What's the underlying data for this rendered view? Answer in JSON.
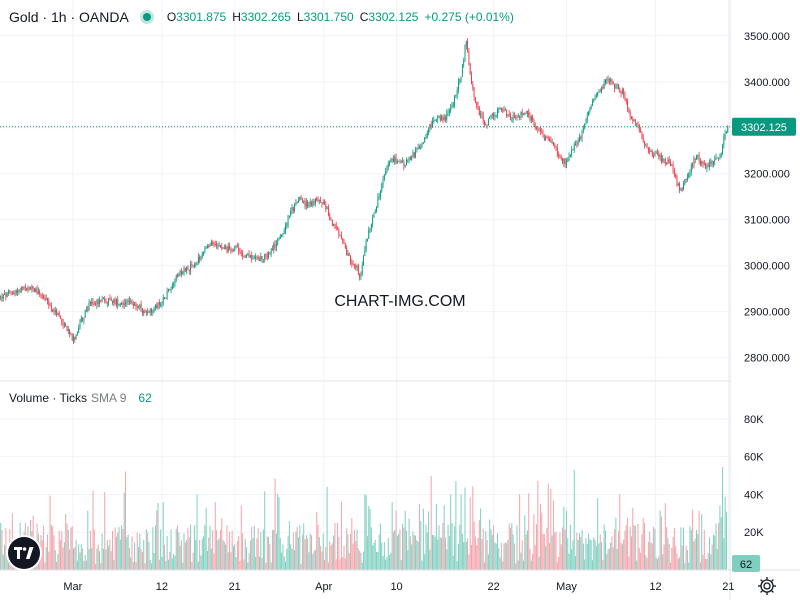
{
  "header": {
    "title": "Gold · 1h · OANDA",
    "open_label": "O",
    "open": "3301.875",
    "high_label": "H",
    "high": "3302.265",
    "low_label": "L",
    "low": "3301.750",
    "close_label": "C",
    "close": "3302.125",
    "change": "+0.275 (+0.01%)"
  },
  "watermark": "CHART-IMG.COM",
  "last_price_label": "3302.125",
  "volume_legend": {
    "name": "Volume · Ticks",
    "sma": "SMA 9",
    "value": "62"
  },
  "volume_last_label": "62",
  "colors": {
    "up": "#089981",
    "down": "#f23645",
    "up_volume": "#7fcfc0",
    "down_volume": "#f3a3aa",
    "text": "#131722",
    "grid": "#f0f3fa"
  },
  "icons": {
    "logo": "tradingview-logo-icon",
    "settings": "gear-icon"
  },
  "chart_data": {
    "type": "candlestick",
    "symbol": "Gold",
    "timeframe": "1h",
    "source": "OANDA",
    "ylim": [
      2760,
      3530
    ],
    "y_ticks": [
      2800,
      2900,
      3000,
      3100,
      3200,
      3300,
      3400,
      3500
    ],
    "y_tick_labels": [
      "2800.000",
      "2900.000",
      "3000.000",
      "3100.000",
      "3200.000",
      "3300.000",
      "3400.000",
      "3500.000"
    ],
    "x_ticks": [
      {
        "label": "Mar",
        "day": 0
      },
      {
        "label": "12",
        "day": 11
      },
      {
        "label": "21",
        "day": 20
      },
      {
        "label": "Apr",
        "day": 31
      },
      {
        "label": "10",
        "day": 40
      },
      {
        "label": "22",
        "day": 52
      },
      {
        "label": "May",
        "day": 61
      },
      {
        "label": "12",
        "day": 72
      },
      {
        "label": "21",
        "day": 81
      }
    ],
    "x_range_days": [
      -9,
      81.2
    ],
    "price_path": [
      [
        -9,
        2930
      ],
      [
        -7,
        2945
      ],
      [
        -5,
        2952
      ],
      [
        -4,
        2940
      ],
      [
        -3,
        2915
      ],
      [
        -2,
        2895
      ],
      [
        -1,
        2870
      ],
      [
        0,
        2835
      ],
      [
        1,
        2880
      ],
      [
        2,
        2915
      ],
      [
        3,
        2920
      ],
      [
        4,
        2925
      ],
      [
        6,
        2920
      ],
      [
        8,
        2915
      ],
      [
        9,
        2895
      ],
      [
        10,
        2905
      ],
      [
        11,
        2925
      ],
      [
        12,
        2950
      ],
      [
        13,
        2985
      ],
      [
        15,
        3000
      ],
      [
        16,
        3025
      ],
      [
        17,
        3045
      ],
      [
        18,
        3050
      ],
      [
        19,
        3035
      ],
      [
        20,
        3040
      ],
      [
        21,
        3025
      ],
      [
        22,
        3020
      ],
      [
        23,
        3015
      ],
      [
        24,
        3025
      ],
      [
        25,
        3045
      ],
      [
        26,
        3075
      ],
      [
        27,
        3120
      ],
      [
        28,
        3145
      ],
      [
        29,
        3130
      ],
      [
        30,
        3140
      ],
      [
        31,
        3140
      ],
      [
        32,
        3095
      ],
      [
        33,
        3065
      ],
      [
        34,
        3020
      ],
      [
        35,
        3000
      ],
      [
        35.5,
        2975
      ],
      [
        36,
        3030
      ],
      [
        37,
        3105
      ],
      [
        38,
        3160
      ],
      [
        39,
        3225
      ],
      [
        40,
        3230
      ],
      [
        41,
        3220
      ],
      [
        42,
        3240
      ],
      [
        43,
        3260
      ],
      [
        44,
        3300
      ],
      [
        45,
        3325
      ],
      [
        46,
        3320
      ],
      [
        47,
        3355
      ],
      [
        48,
        3415
      ],
      [
        48.6,
        3490
      ],
      [
        49.2,
        3400
      ],
      [
        50,
        3340
      ],
      [
        51,
        3305
      ],
      [
        52,
        3330
      ],
      [
        53,
        3340
      ],
      [
        54,
        3320
      ],
      [
        55,
        3325
      ],
      [
        56,
        3335
      ],
      [
        57,
        3310
      ],
      [
        58,
        3280
      ],
      [
        59,
        3275
      ],
      [
        60,
        3240
      ],
      [
        61,
        3220
      ],
      [
        62,
        3260
      ],
      [
        63,
        3290
      ],
      [
        64,
        3350
      ],
      [
        65,
        3380
      ],
      [
        66,
        3405
      ],
      [
        67,
        3390
      ],
      [
        68,
        3375
      ],
      [
        69,
        3320
      ],
      [
        70,
        3300
      ],
      [
        71,
        3250
      ],
      [
        72,
        3240
      ],
      [
        73,
        3230
      ],
      [
        74,
        3220
      ],
      [
        75,
        3160
      ],
      [
        76,
        3200
      ],
      [
        77,
        3240
      ],
      [
        78,
        3215
      ],
      [
        79,
        3225
      ],
      [
        80,
        3240
      ],
      [
        80.5,
        3280
      ],
      [
        81,
        3302.125
      ]
    ],
    "volume": {
      "name": "Volume · Ticks",
      "sma_period": 9,
      "last": 62,
      "ylim": [
        0,
        90000
      ],
      "y_ticks": [
        20000,
        40000,
        60000,
        80000
      ],
      "y_tick_labels": [
        "20K",
        "40K",
        "60K",
        "80K"
      ]
    }
  }
}
